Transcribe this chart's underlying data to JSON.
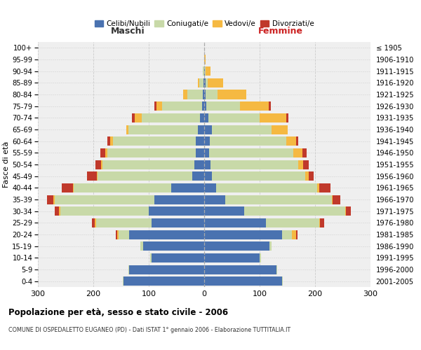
{
  "age_groups": [
    "0-4",
    "5-9",
    "10-14",
    "15-19",
    "20-24",
    "25-29",
    "30-34",
    "35-39",
    "40-44",
    "45-49",
    "50-54",
    "55-59",
    "60-64",
    "65-69",
    "70-74",
    "75-79",
    "80-84",
    "85-89",
    "90-94",
    "95-99",
    "100+"
  ],
  "birth_years": [
    "2001-2005",
    "1996-2000",
    "1991-1995",
    "1986-1990",
    "1981-1985",
    "1976-1980",
    "1971-1975",
    "1966-1970",
    "1961-1965",
    "1956-1960",
    "1951-1955",
    "1946-1950",
    "1941-1945",
    "1936-1940",
    "1931-1935",
    "1926-1930",
    "1921-1925",
    "1916-1920",
    "1911-1915",
    "1906-1910",
    "≤ 1905"
  ],
  "male_celibi": [
    145,
    135,
    95,
    110,
    135,
    95,
    100,
    90,
    60,
    22,
    18,
    15,
    15,
    12,
    8,
    4,
    2,
    1,
    0,
    0,
    0
  ],
  "male_coniugati": [
    2,
    2,
    2,
    5,
    20,
    100,
    160,
    180,
    175,
    170,
    165,
    160,
    150,
    125,
    105,
    72,
    28,
    8,
    2,
    0,
    0
  ],
  "male_vedovi": [
    0,
    0,
    0,
    0,
    2,
    2,
    2,
    2,
    2,
    2,
    3,
    4,
    5,
    4,
    12,
    10,
    8,
    3,
    0,
    0,
    0
  ],
  "male_divorziati": [
    0,
    0,
    0,
    0,
    2,
    5,
    8,
    12,
    20,
    18,
    10,
    8,
    5,
    0,
    5,
    4,
    0,
    0,
    0,
    0,
    0
  ],
  "female_celibi": [
    140,
    130,
    100,
    118,
    140,
    112,
    72,
    38,
    22,
    14,
    11,
    9,
    10,
    14,
    8,
    4,
    2,
    2,
    1,
    0,
    0
  ],
  "female_coniugati": [
    2,
    2,
    2,
    4,
    18,
    95,
    182,
    192,
    182,
    168,
    158,
    152,
    138,
    108,
    92,
    60,
    22,
    4,
    2,
    0,
    0
  ],
  "female_vedovi": [
    0,
    0,
    0,
    0,
    8,
    2,
    2,
    2,
    4,
    6,
    10,
    16,
    18,
    28,
    48,
    52,
    52,
    28,
    8,
    2,
    0
  ],
  "female_divorziati": [
    0,
    0,
    0,
    0,
    2,
    8,
    8,
    14,
    20,
    10,
    10,
    8,
    4,
    0,
    4,
    4,
    0,
    0,
    0,
    0,
    0
  ],
  "color_celibi": "#4a72b0",
  "color_coniugati": "#c8d9a8",
  "color_vedovi": "#f5b942",
  "color_divorziati": "#c0392b",
  "xlim": 300,
  "title": "Popolazione per età, sesso e stato civile - 2006",
  "subtitle": "COMUNE DI OSPEDALETTO EUGANEO (PD) - Dati ISTAT 1° gennaio 2006 - Elaborazione TUTTITALIA.IT",
  "ylabel_left": "Fasce di età",
  "label_maschi": "Maschi",
  "label_femmine": "Femmine",
  "legend_labels": [
    "Celibi/Nubili",
    "Coniugati/e",
    "Vedovi/e",
    "Divorziati/e"
  ],
  "bg_color": "#ffffff",
  "plot_bg": "#efefef",
  "grid_color": "#cccccc"
}
